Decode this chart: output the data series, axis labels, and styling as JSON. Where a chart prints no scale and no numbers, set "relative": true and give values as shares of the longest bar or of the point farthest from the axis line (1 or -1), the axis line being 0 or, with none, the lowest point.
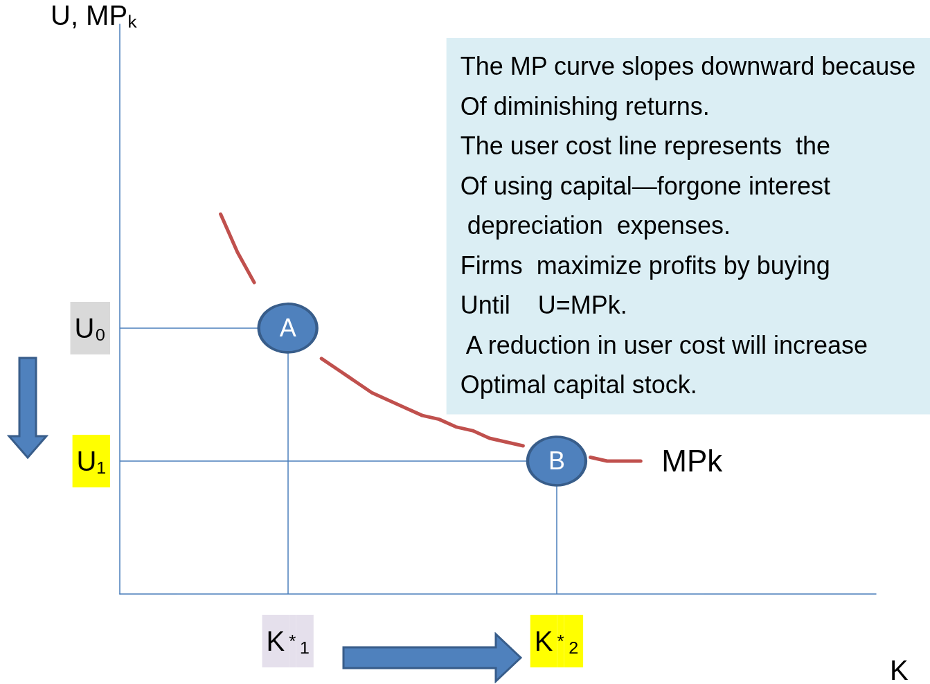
{
  "chart_data": {
    "type": "line",
    "xlabel": "K",
    "relative": true,
    "line_style": "solid",
    "categories": [
      null,
      null,
      null,
      null,
      null,
      null,
      null,
      null,
      null,
      null,
      "K$^{*}$₁",
      null,
      null,
      null,
      null,
      null,
      null,
      null,
      null,
      null,
      null,
      null,
      null,
      null,
      null,
      null,
      "K$^{*}$₂",
      null,
      null,
      null,
      null,
      null,
      null,
      null,
      null,
      null,
      null,
      null,
      null,
      null,
      null,
      null,
      null,
      null,
      null,
      null
    ],
    "series": [
      {
        "name": "MPk",
        "color": "#c0504d",
        "values": [
          null,
          null,
          null,
          null,
          null,
          null,
          1.0,
          0.9,
          0.82,
          null,
          null,
          null,
          0.62,
          0.59,
          0.56,
          0.53,
          0.51,
          0.49,
          0.47,
          0.46,
          0.44,
          0.43,
          0.41,
          0.4,
          0.39,
          null,
          null,
          null,
          0.36,
          0.35,
          0.35,
          0.35,
          null,
          null,
          null,
          null,
          null,
          null,
          null,
          null,
          null,
          null,
          null,
          null,
          null,
          null
        ]
      }
    ],
    "ref_lines": [
      {
        "axis": "y",
        "value": 0.7,
        "label": "U₀"
      },
      {
        "axis": "y",
        "value": 0.35,
        "label": "U₁"
      },
      {
        "axis": "x",
        "value": "K$^{*}$₁",
        "label": null
      },
      {
        "axis": "x",
        "value": "K$^{*}$₂",
        "label": null
      }
    ],
    "annotations": [
      "U, MPₖ",
      {
        "text": "A",
        "x": "K$^{*}$₁",
        "y": 0.7
      },
      {
        "text": "B",
        "x": "K$^{*}$₂",
        "y": 0.35
      },
      "The MP curve slopes downward because\nOf diminishing returns.\nThe user cost line represents  the\nOf using capital—forgone interest\n depreciation  expenses.\nFirms  maximize profits by buying\nUntil    U=MPk.\n A reduction in user cost will increase\nOptimal capital stock."
    ]
  }
}
